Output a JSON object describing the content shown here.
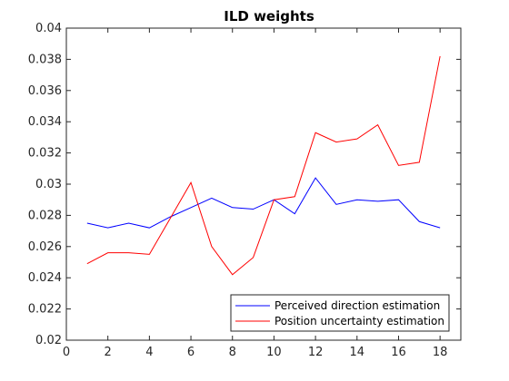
{
  "chart_data": {
    "type": "line",
    "title": "ILD weights",
    "xlabel": "",
    "ylabel": "",
    "xlim": [
      0,
      19
    ],
    "ylim": [
      0.02,
      0.04
    ],
    "x_ticks": [
      0,
      2,
      4,
      6,
      8,
      10,
      12,
      14,
      16,
      18
    ],
    "x_tick_labels": [
      "0",
      "2",
      "4",
      "6",
      "8",
      "10",
      "12",
      "14",
      "16",
      "18"
    ],
    "y_ticks": [
      0.02,
      0.022,
      0.024,
      0.026,
      0.028,
      0.03,
      0.032,
      0.034,
      0.036,
      0.038,
      0.04
    ],
    "y_tick_labels": [
      "0.02",
      "0.022",
      "0.024",
      "0.026",
      "0.028",
      "0.03",
      "0.032",
      "0.034",
      "0.036",
      "0.038",
      "0.04"
    ],
    "grid": false,
    "legend_position": "bottom-right",
    "x": [
      1,
      2,
      3,
      4,
      5,
      6,
      7,
      8,
      9,
      10,
      11,
      12,
      13,
      14,
      15,
      16,
      17,
      18
    ],
    "series": [
      {
        "name": "Perceived direction estimation",
        "color": "#0000ff",
        "values": [
          0.0275,
          0.0272,
          0.0275,
          0.0272,
          0.0279,
          0.0285,
          0.0291,
          0.0285,
          0.0284,
          0.029,
          0.0281,
          0.0304,
          0.0287,
          0.029,
          0.0289,
          0.029,
          0.0276,
          0.0272
        ]
      },
      {
        "name": "Position uncertainty estimation",
        "color": "#ff0000",
        "values": [
          0.0249,
          0.0256,
          0.0256,
          0.0255,
          0.0278,
          0.0301,
          0.026,
          0.0242,
          0.0253,
          0.029,
          0.0292,
          0.0333,
          0.0327,
          0.0329,
          0.0338,
          0.0312,
          0.0314,
          0.0382
        ]
      }
    ]
  }
}
